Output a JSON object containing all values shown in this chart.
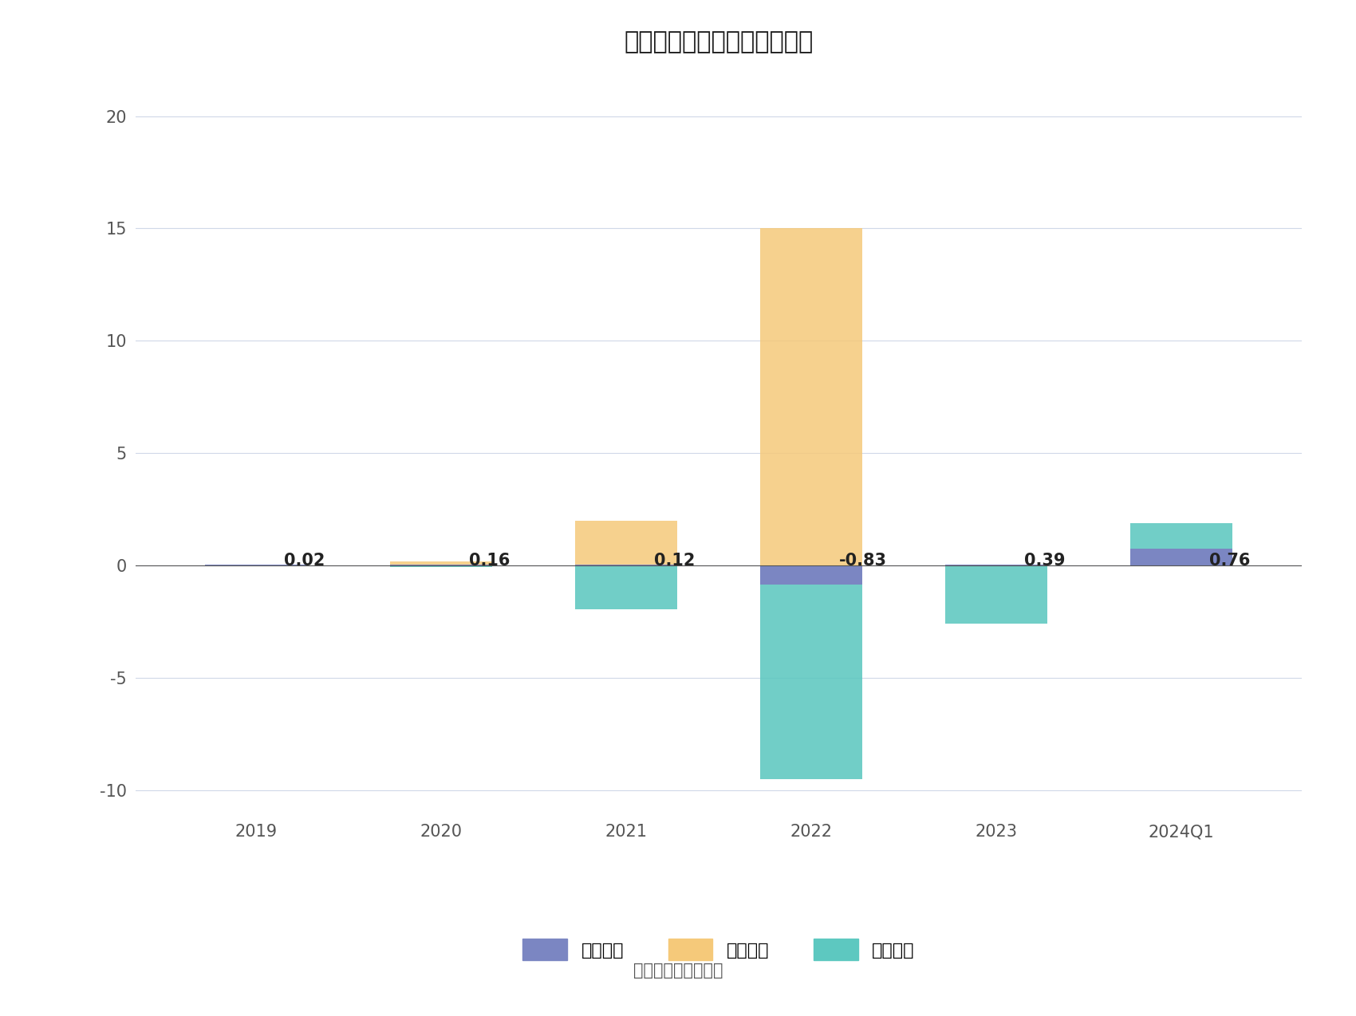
{
  "title": "德邦科技现金流净额（亿元）",
  "categories": [
    "2019",
    "2020",
    "2021",
    "2022",
    "2023",
    "2024Q1"
  ],
  "operations": [
    0.03,
    0.03,
    0.05,
    -0.83,
    0.05,
    0.76
  ],
  "financing": [
    0.03,
    0.2,
    2.0,
    15.0,
    0.05,
    0.32
  ],
  "investment": [
    0.02,
    -0.07,
    -1.93,
    -9.5,
    -2.6,
    1.9
  ],
  "net_labels": [
    "0.02",
    "0.16",
    "0.12",
    "-0.83",
    "0.39",
    "0.76"
  ],
  "net_values": [
    0.02,
    0.16,
    0.12,
    -0.83,
    0.39,
    0.76
  ],
  "operations_color": "#7B86C2",
  "financing_color": "#F5C97A",
  "investment_color": "#5DC8C0",
  "ylim": [
    -11,
    22
  ],
  "yticks": [
    -10,
    -5,
    0,
    5,
    10,
    15,
    20
  ],
  "background_color": "#FFFFFF",
  "grid_color": "#D0D8E8",
  "title_fontsize": 22,
  "label_fontsize": 15,
  "tick_fontsize": 15,
  "legend_fontsize": 16,
  "source_text": "数据来源：恒生聚源",
  "legend_labels": [
    "经营活动",
    "筹资活动",
    "投资活动"
  ],
  "bar_width": 0.55
}
